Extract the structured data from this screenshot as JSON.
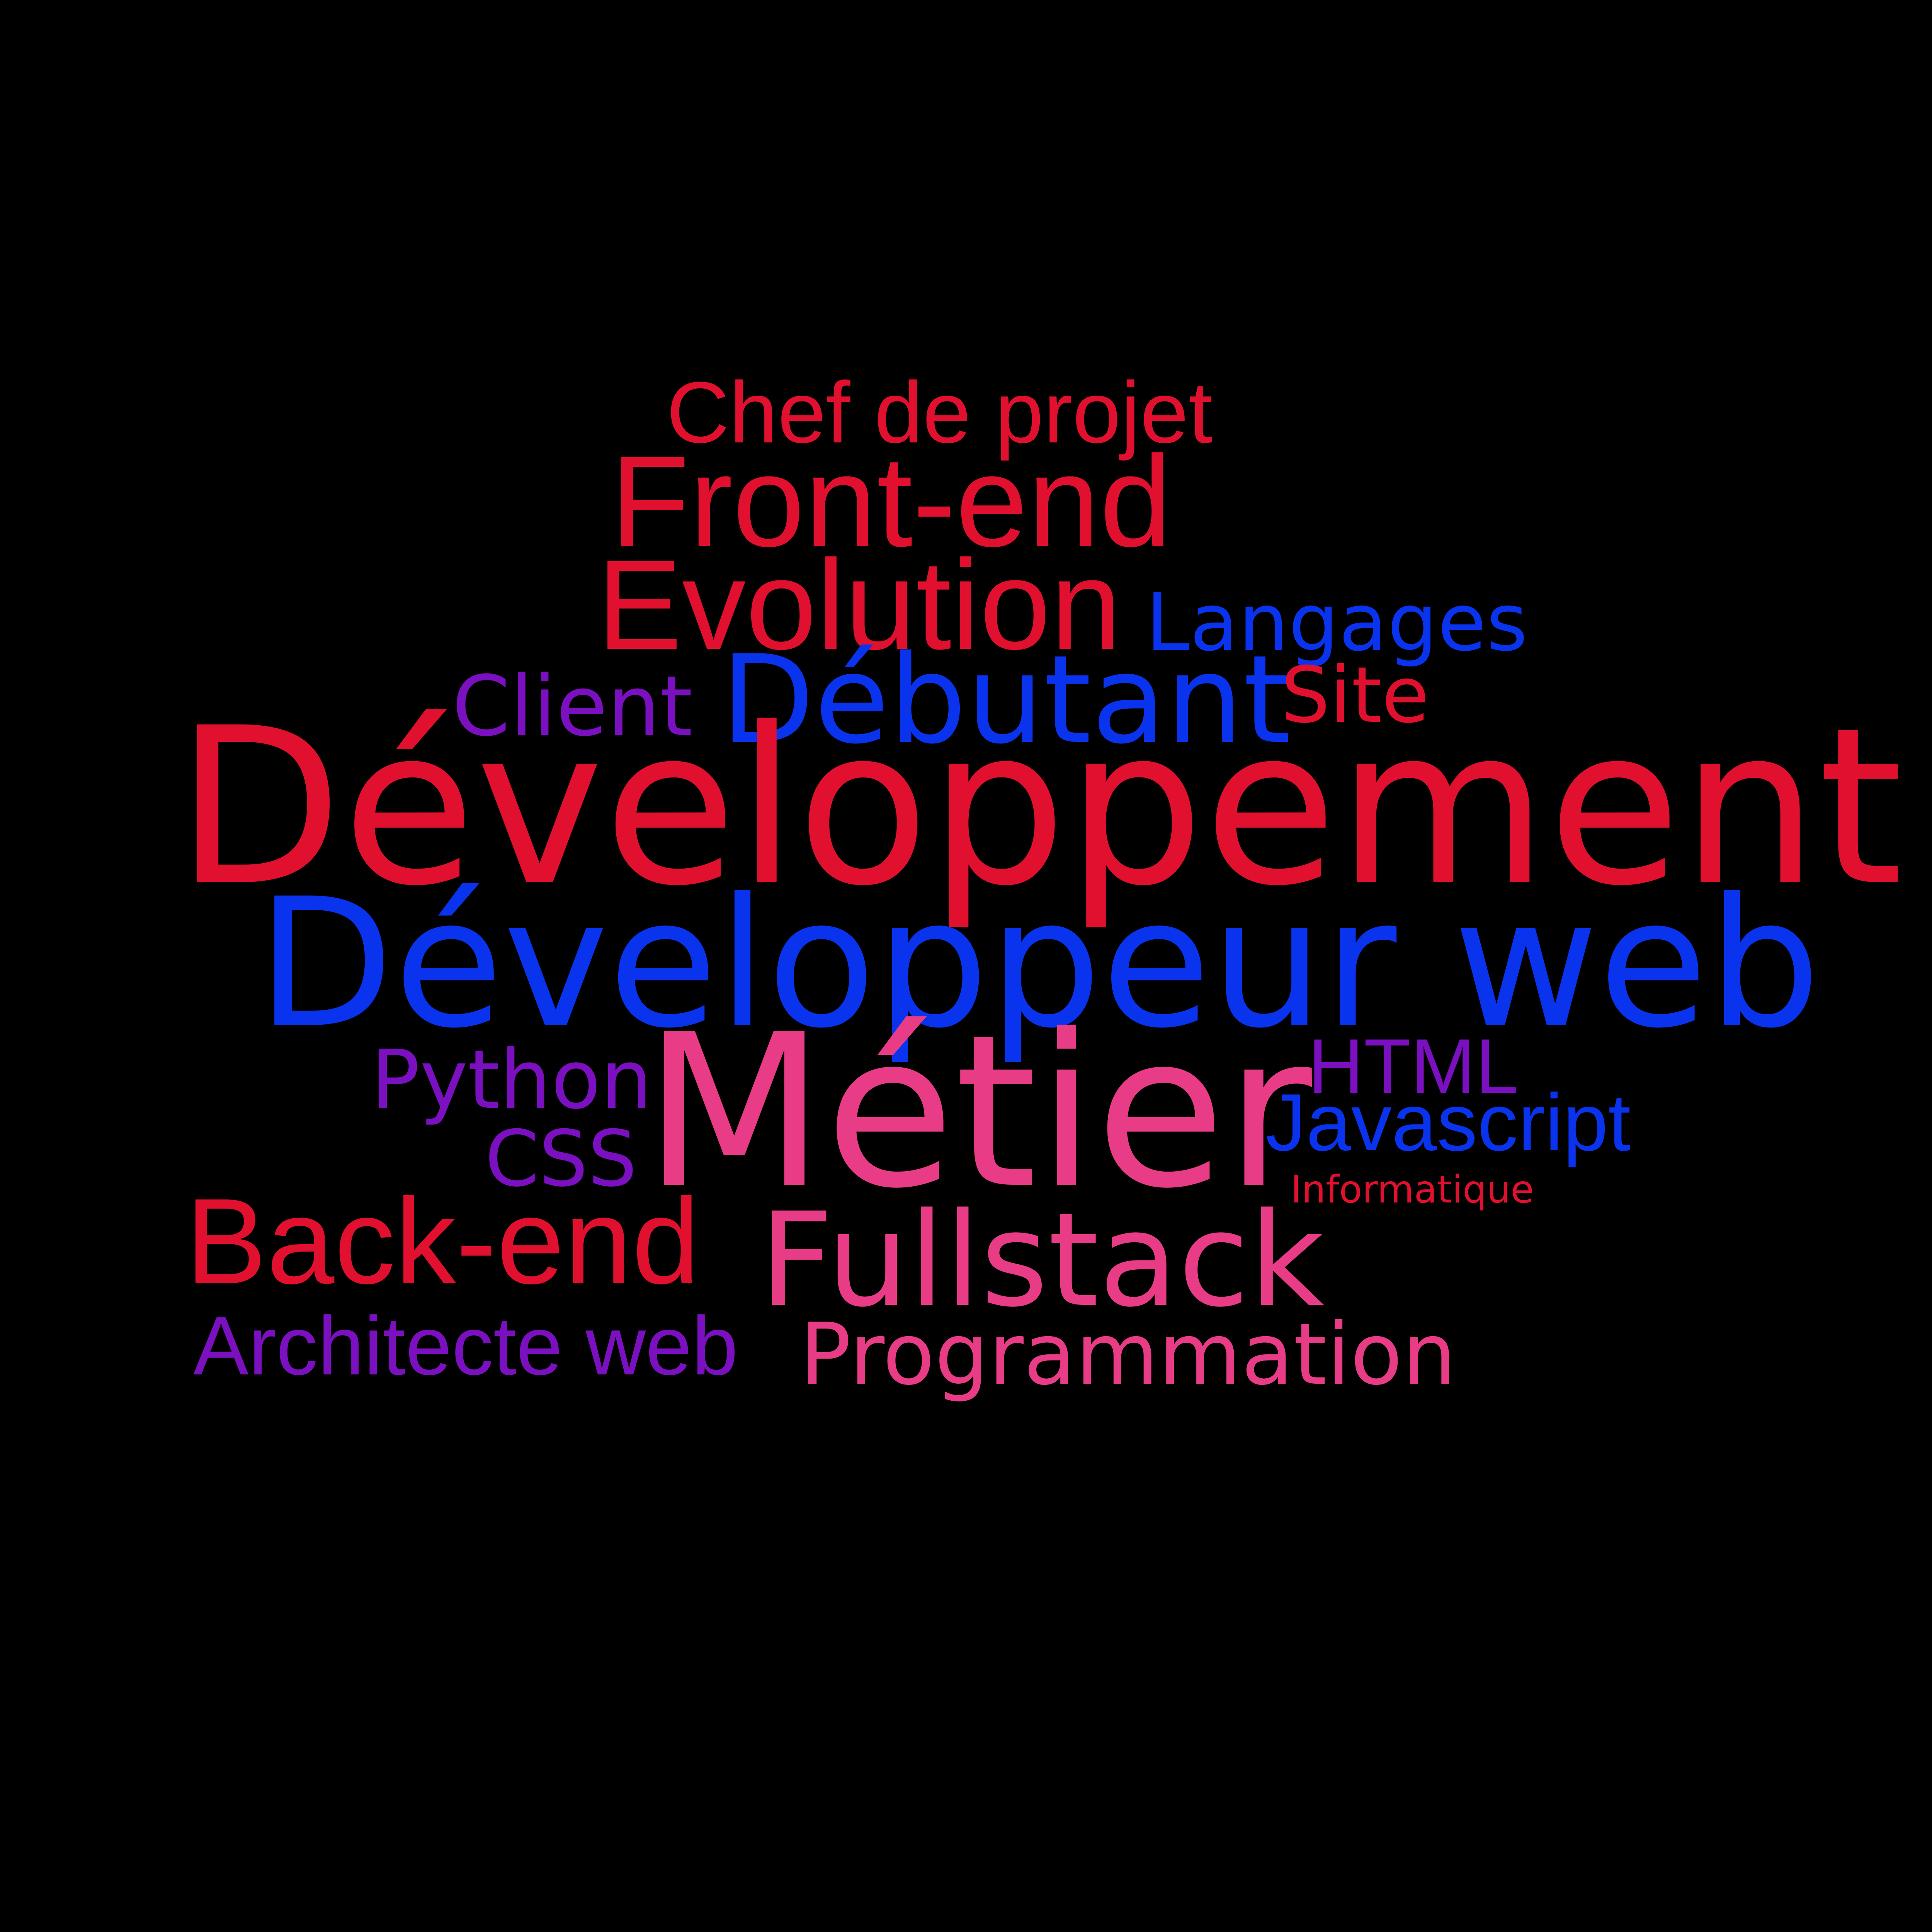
{
  "colors": {
    "background": "#000000",
    "red": "#e2102f",
    "blue": "#0a33ee",
    "purple": "#7a10bf",
    "pink": "#e83c86"
  },
  "words": {
    "chef_de_projet": "Chef de projet",
    "front_end": "Front-end",
    "evolution": "Evolution",
    "langages": "Langages",
    "client": "Client",
    "debutant": "Débutant",
    "site": "Site",
    "developpement": "Développement",
    "developpeur_web": "Développeur web",
    "python": "Python",
    "metier": "Métier",
    "html": "HTML",
    "javascript": "Javascript",
    "css": "CSS",
    "informatique": "Informatique",
    "back_end": "Back-end",
    "fullstack": "Fullstack",
    "architecte_web": "Architecte web",
    "programmation": "Programmation"
  }
}
